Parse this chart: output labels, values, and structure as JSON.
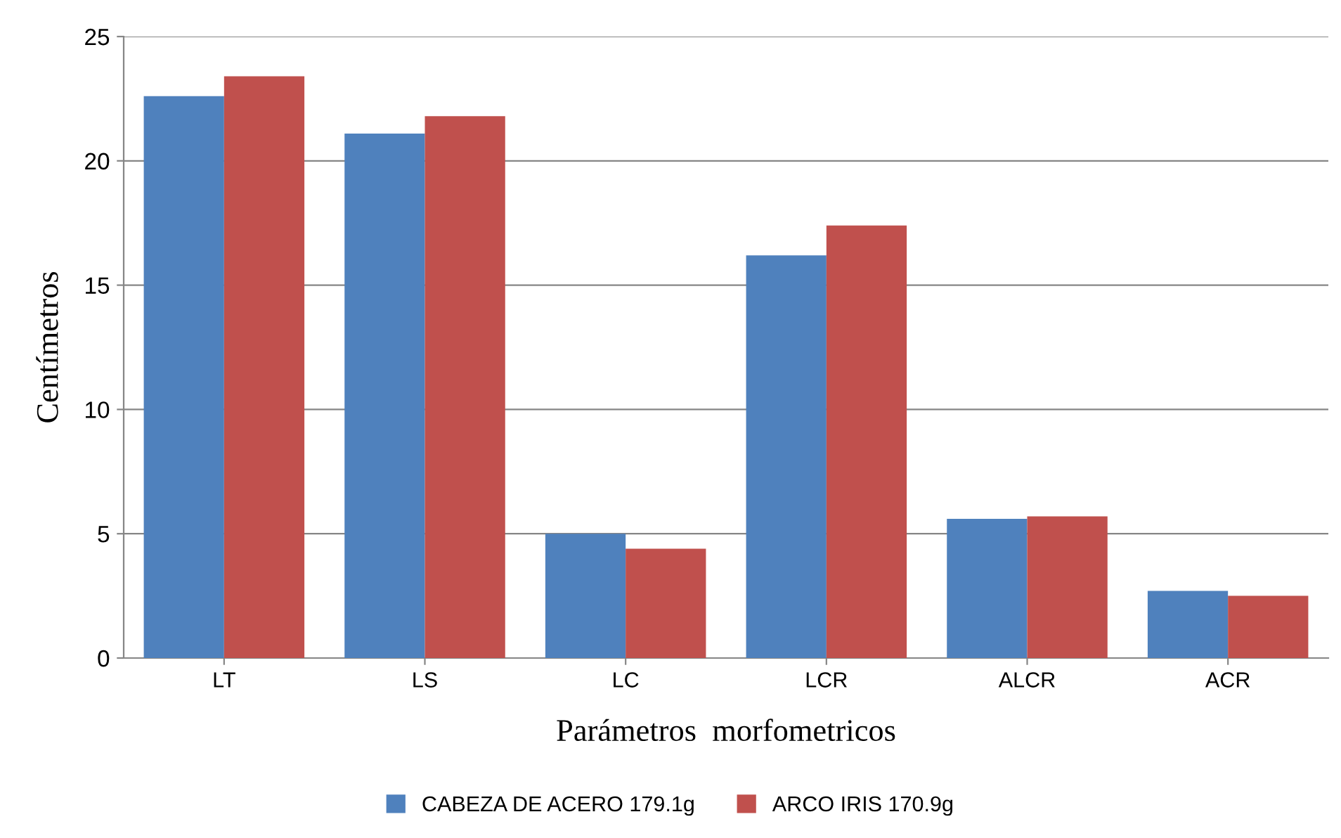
{
  "chart_data": {
    "type": "bar",
    "xlabel": "Parámetros  morfometricos",
    "ylabel": "Centímetros",
    "categories": [
      "LT",
      "LS",
      "LC",
      "LCR",
      "ALCR",
      "ACR"
    ],
    "series": [
      {
        "name": "CABEZA DE ACERO 179.1g",
        "color": "#4f81bd",
        "values": [
          22.6,
          21.1,
          5.0,
          16.2,
          5.6,
          2.7
        ]
      },
      {
        "name": "ARCO IRIS 170.9g",
        "color": "#c0504d",
        "values": [
          23.4,
          21.8,
          4.4,
          17.4,
          5.7,
          2.5
        ]
      }
    ],
    "ylim": [
      0,
      25
    ],
    "yticks": [
      0,
      5,
      10,
      15,
      20,
      25
    ],
    "grid": "y",
    "legend": "bottom"
  }
}
